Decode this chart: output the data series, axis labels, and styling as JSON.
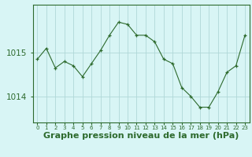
{
  "x": [
    0,
    1,
    2,
    3,
    4,
    5,
    6,
    7,
    8,
    9,
    10,
    11,
    12,
    13,
    14,
    15,
    16,
    17,
    18,
    19,
    20,
    21,
    22,
    23
  ],
  "y": [
    1014.85,
    1015.1,
    1014.65,
    1014.8,
    1014.7,
    1014.45,
    1014.75,
    1015.05,
    1015.4,
    1015.7,
    1015.65,
    1015.4,
    1015.4,
    1015.25,
    1014.85,
    1014.75,
    1014.2,
    1014.0,
    1013.75,
    1013.75,
    1014.1,
    1014.55,
    1014.7,
    1015.4
  ],
  "line_color": "#2d6a2d",
  "marker": "+",
  "bg_color": "#d8f5f5",
  "grid_color": "#b0d8d8",
  "axis_color": "#2d6a2d",
  "xlabel": "Graphe pression niveau de la mer (hPa)",
  "yticks": [
    1014,
    1015
  ],
  "ylim": [
    1013.4,
    1016.1
  ],
  "xlim": [
    -0.5,
    23.5
  ],
  "label_fontsize": 8.0,
  "xtick_fontsize": 5.0,
  "ytick_fontsize": 7.5
}
